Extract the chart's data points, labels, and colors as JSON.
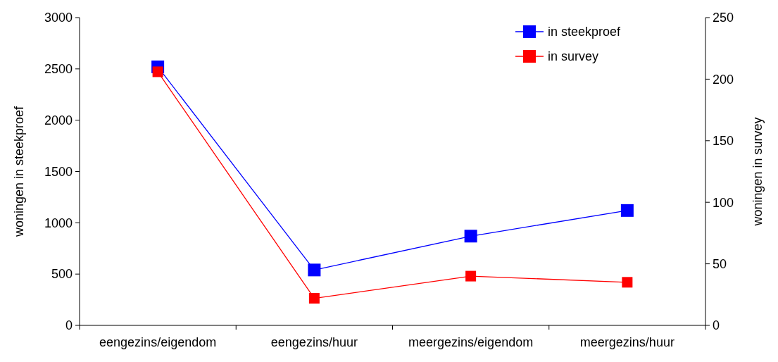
{
  "chart_data": {
    "type": "line",
    "categories": [
      "eengezins/eigendom",
      "eengezins/huur",
      "meergezins/eigendom",
      "meergezins/huur"
    ],
    "ylabel": "woningen in steekproef",
    "y2label": "woningen in survey",
    "ylim": [
      0,
      3000
    ],
    "yticks": [
      0,
      500,
      1000,
      1500,
      2000,
      2500,
      3000
    ],
    "y2lim": [
      0,
      250
    ],
    "y2ticks": [
      0,
      50,
      100,
      150,
      200,
      250
    ],
    "series": [
      {
        "name": "in steekproef",
        "color": "#0000ff",
        "values": [
          2520,
          540,
          870,
          1120
        ]
      },
      {
        "name": "in survey",
        "color": "#ff0000",
        "axis": "y2",
        "values": [
          206,
          22,
          40,
          35
        ]
      }
    ],
    "marker": "square",
    "legend": "top right",
    "grid": false
  }
}
